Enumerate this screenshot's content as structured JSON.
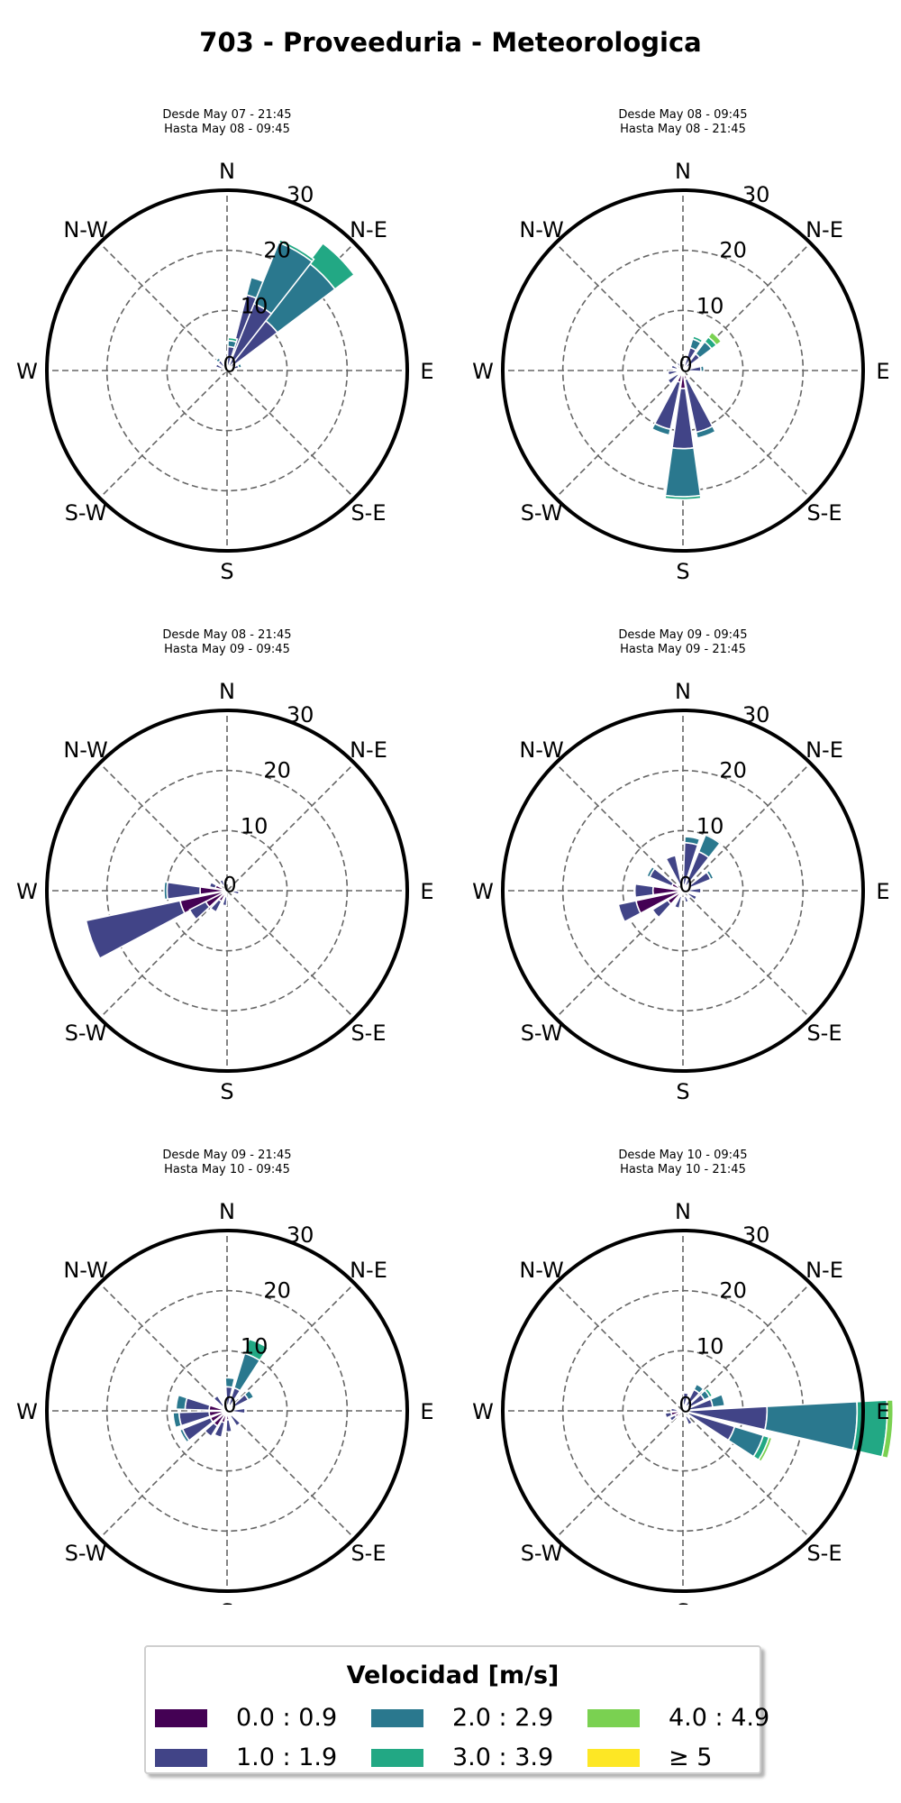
{
  "title": "703 - Proveeduria - Meteorologica",
  "chart_data": [
    {
      "type": "windrose",
      "subtitle_lines": [
        "Desde May 07 - 21:45",
        "Hasta May 08 - 09:45"
      ],
      "direction_labels": [
        "N",
        "N-E",
        "E",
        "S-E",
        "S",
        "S-W",
        "W",
        "N-W"
      ],
      "radial_ticks": [
        "0",
        "10",
        "20",
        "30"
      ],
      "rlim": [
        0,
        30
      ],
      "bins": [
        {
          "dir": 22.5,
          "stack": [
            0,
            13,
            3,
            0,
            0
          ]
        },
        {
          "dir": 45,
          "stack": [
            0,
            10.5,
            12,
            4,
            0
          ]
        },
        {
          "dir": 30,
          "stack": [
            0,
            12,
            11,
            0.5,
            0
          ]
        },
        {
          "dir": 10,
          "stack": [
            0,
            4,
            1,
            0.5,
            0
          ]
        },
        {
          "dir": 70,
          "stack": [
            0,
            2,
            0.5,
            0,
            0
          ]
        },
        {
          "dir": 295,
          "stack": [
            0,
            2,
            0,
            0,
            0
          ]
        },
        {
          "dir": 320,
          "stack": [
            0,
            2,
            0.5,
            0,
            0
          ]
        },
        {
          "dir": 250,
          "stack": [
            0,
            1,
            0,
            0,
            0
          ]
        }
      ]
    },
    {
      "type": "windrose",
      "subtitle_lines": [
        "Desde May 08 - 09:45",
        "Hasta May 08 - 21:45"
      ],
      "direction_labels": [
        "N",
        "N-E",
        "E",
        "S-E",
        "S",
        "S-W",
        "W",
        "N-W"
      ],
      "radial_ticks": [
        "0",
        "10",
        "20",
        "30"
      ],
      "rlim": [
        0,
        30
      ],
      "bins": [
        {
          "dir": 180,
          "stack": [
            3,
            10,
            8,
            0.5,
            0
          ]
        },
        {
          "dir": 160,
          "stack": [
            1.5,
            9,
            1,
            0,
            0
          ]
        },
        {
          "dir": 200,
          "stack": [
            2,
            8,
            1,
            0,
            0
          ]
        },
        {
          "dir": 45,
          "stack": [
            0,
            3.5,
            2.5,
            1,
            1
          ]
        },
        {
          "dir": 25,
          "stack": [
            0,
            4,
            1.5,
            0.5,
            0
          ]
        },
        {
          "dir": 85,
          "stack": [
            0,
            3,
            0.5,
            0,
            0
          ]
        },
        {
          "dir": 230,
          "stack": [
            1,
            2,
            0,
            0,
            0
          ]
        },
        {
          "dir": 260,
          "stack": [
            1,
            1.5,
            0,
            0,
            0
          ]
        },
        {
          "dir": 290,
          "stack": [
            1,
            1,
            0,
            0,
            0
          ]
        },
        {
          "dir": 325,
          "stack": [
            0.5,
            1,
            0,
            0,
            0
          ]
        }
      ]
    },
    {
      "type": "windrose",
      "subtitle_lines": [
        "Desde May 08 - 21:45",
        "Hasta May 09 - 09:45"
      ],
      "direction_labels": [
        "N",
        "N-E",
        "E",
        "S-E",
        "S",
        "S-W",
        "W",
        "N-W"
      ],
      "radial_ticks": [
        "0",
        "10",
        "20",
        "30"
      ],
      "rlim": [
        0,
        30
      ],
      "bins": [
        {
          "dir": 250,
          "stack": [
            8,
            16,
            0,
            0,
            0
          ]
        },
        {
          "dir": 270,
          "stack": [
            4.5,
            5.5,
            0.5,
            0,
            0
          ]
        },
        {
          "dir": 235,
          "stack": [
            4,
            3,
            0,
            0,
            0
          ]
        },
        {
          "dir": 215,
          "stack": [
            2,
            2,
            0,
            0,
            0
          ]
        },
        {
          "dir": 190,
          "stack": [
            1,
            1.5,
            0,
            0,
            0
          ]
        },
        {
          "dir": 290,
          "stack": [
            2,
            1,
            0,
            0,
            0
          ]
        },
        {
          "dir": 330,
          "stack": [
            1,
            1,
            0,
            0,
            0
          ]
        },
        {
          "dir": 100,
          "stack": [
            1,
            1,
            0,
            0,
            0
          ]
        }
      ]
    },
    {
      "type": "windrose",
      "subtitle_lines": [
        "Desde May 09 - 09:45",
        "Hasta May 09 - 21:45"
      ],
      "direction_labels": [
        "N",
        "N-E",
        "E",
        "S-E",
        "S",
        "S-W",
        "W",
        "N-W"
      ],
      "radial_ticks": [
        "0",
        "10",
        "20",
        "30"
      ],
      "rlim": [
        0,
        30
      ],
      "bins": [
        {
          "dir": 250,
          "stack": [
            8,
            3,
            0,
            0,
            0
          ]
        },
        {
          "dir": 270,
          "stack": [
            5,
            3,
            0,
            0,
            0
          ]
        },
        {
          "dir": 30,
          "stack": [
            1,
            6,
            3,
            0,
            0
          ]
        },
        {
          "dir": 10,
          "stack": [
            1,
            7,
            1,
            0,
            0
          ]
        },
        {
          "dir": 340,
          "stack": [
            1,
            5,
            0,
            0,
            0
          ]
        },
        {
          "dir": 300,
          "stack": [
            2,
            4,
            0.5,
            0,
            0
          ]
        },
        {
          "dir": 60,
          "stack": [
            1,
            4,
            0.5,
            0,
            0
          ]
        },
        {
          "dir": 230,
          "stack": [
            3,
            3,
            0,
            0,
            0
          ]
        },
        {
          "dir": 90,
          "stack": [
            1,
            2,
            0,
            0,
            0
          ]
        },
        {
          "dir": 120,
          "stack": [
            1,
            1.5,
            0,
            0,
            0
          ]
        },
        {
          "dir": 160,
          "stack": [
            1,
            1,
            0,
            0,
            0
          ]
        },
        {
          "dir": 200,
          "stack": [
            1,
            2,
            0,
            0,
            0
          ]
        }
      ]
    },
    {
      "type": "windrose",
      "subtitle_lines": [
        "Desde May 09 - 21:45",
        "Hasta May 10 - 09:45"
      ],
      "direction_labels": [
        "N",
        "N-E",
        "E",
        "S-E",
        "S",
        "S-W",
        "W",
        "N-W"
      ],
      "radial_ticks": [
        "0",
        "10",
        "20",
        "30"
      ],
      "rlim": [
        0,
        30
      ],
      "bins": [
        {
          "dir": 25,
          "stack": [
            1,
            3,
            6,
            2.5,
            0
          ]
        },
        {
          "dir": 260,
          "stack": [
            3,
            5,
            1,
            0,
            0
          ]
        },
        {
          "dir": 240,
          "stack": [
            3,
            5,
            0.5,
            0,
            0
          ]
        },
        {
          "dir": 280,
          "stack": [
            3,
            4,
            1.5,
            0,
            0
          ]
        },
        {
          "dir": 220,
          "stack": [
            3,
            2,
            0,
            0,
            0
          ]
        },
        {
          "dir": 200,
          "stack": [
            2,
            2.5,
            0,
            0,
            0
          ]
        },
        {
          "dir": 320,
          "stack": [
            1,
            2,
            0,
            0,
            0
          ]
        },
        {
          "dir": 5,
          "stack": [
            1,
            3,
            1.5,
            0,
            0
          ]
        },
        {
          "dir": 55,
          "stack": [
            1,
            3,
            1,
            0,
            0
          ]
        },
        {
          "dir": 90,
          "stack": [
            1,
            2,
            0,
            0,
            0
          ]
        },
        {
          "dir": 140,
          "stack": [
            1,
            2,
            0,
            0,
            0
          ]
        },
        {
          "dir": 175,
          "stack": [
            1.5,
            2,
            0,
            0,
            0
          ]
        }
      ]
    },
    {
      "type": "windrose",
      "subtitle_lines": [
        "Desde May 10 - 09:45",
        "Hasta May 10 - 21:45"
      ],
      "direction_labels": [
        "N",
        "N-E",
        "E",
        "S-E",
        "S",
        "S-W",
        "W",
        "N-W"
      ],
      "radial_ticks": [
        "0",
        "10",
        "20",
        "30"
      ],
      "rlim": [
        0,
        30
      ],
      "bins": [
        {
          "dir": 95,
          "stack": [
            1,
            13,
            15,
            5,
            1
          ]
        },
        {
          "dir": 115,
          "stack": [
            1,
            8,
            5,
            1,
            0.5
          ]
        },
        {
          "dir": 75,
          "stack": [
            1,
            4,
            2,
            0,
            0
          ]
        },
        {
          "dir": 55,
          "stack": [
            1,
            3,
            1,
            0.5,
            0
          ]
        },
        {
          "dir": 35,
          "stack": [
            1,
            3,
            1,
            0,
            0
          ]
        },
        {
          "dir": 10,
          "stack": [
            1,
            2,
            0,
            0,
            0
          ]
        },
        {
          "dir": 255,
          "stack": [
            2,
            1,
            0,
            0,
            0
          ]
        },
        {
          "dir": 235,
          "stack": [
            1.5,
            1,
            0,
            0,
            0
          ]
        },
        {
          "dir": 275,
          "stack": [
            1,
            1,
            0,
            0,
            0
          ]
        },
        {
          "dir": 150,
          "stack": [
            1,
            1.5,
            0,
            0,
            0
          ]
        }
      ]
    }
  ],
  "legend": {
    "title": "Velocidad [m/s]",
    "items": [
      {
        "label": "0.0 : 0.9",
        "color": "#440154"
      },
      {
        "label": "1.0 : 1.9",
        "color": "#414487"
      },
      {
        "label": "2.0 : 2.9",
        "color": "#2a788e"
      },
      {
        "label": "3.0 : 3.9",
        "color": "#22a884"
      },
      {
        "label": "4.0 : 4.9",
        "color": "#7ad151"
      },
      {
        "label": "≥  5",
        "color": "#fde725"
      }
    ]
  }
}
